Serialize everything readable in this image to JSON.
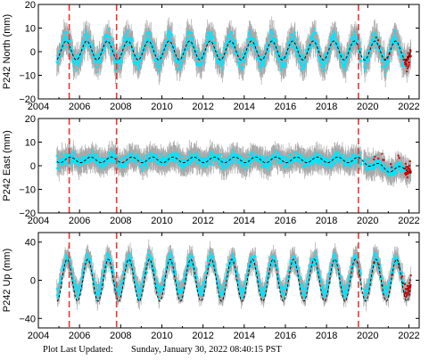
{
  "chart_data": [
    {
      "type": "scatter",
      "ylabel": "P242 North (mm)",
      "xlim": [
        2004,
        2022.5
      ],
      "ylim": [
        -20,
        20
      ],
      "xticks": [
        "2004",
        "2006",
        "2008",
        "2010",
        "2012",
        "2014",
        "2016",
        "2018",
        "2020",
        "2022"
      ],
      "yticks": [
        "20",
        "10",
        "0",
        "−10",
        "−20"
      ],
      "ytick_values": [
        20,
        10,
        0,
        -10,
        -20
      ],
      "event_lines": [
        2005.5,
        2007.8,
        2019.55
      ],
      "series": [
        {
          "x_start": 2004.9,
          "x_end": 2022.1,
          "offset": 0.5,
          "amplitude": 5.5,
          "phase": 0.1,
          "noise": 3.5,
          "error_bar": 5.0,
          "post_2020_color": "#cc0000"
        },
        {
          "model_line": true,
          "amplitude": 4.0,
          "offset": 0.5
        }
      ],
      "colors": {
        "points": "#00e5ff",
        "errors": "#a8a8a8",
        "events": "#e53935",
        "model": "#000000",
        "late": "#cc0000"
      },
      "grid": false
    },
    {
      "type": "scatter",
      "ylabel": "P242 East (mm)",
      "xlim": [
        2004,
        2022.5
      ],
      "ylim": [
        -20,
        20
      ],
      "xticks": [
        "2004",
        "2006",
        "2008",
        "2010",
        "2012",
        "2014",
        "2016",
        "2018",
        "2020",
        "2022"
      ],
      "yticks": [
        "20",
        "10",
        "0",
        "−10",
        "−20"
      ],
      "ytick_values": [
        20,
        10,
        0,
        -10,
        -20
      ],
      "event_lines": [
        2005.5,
        2007.8,
        2019.55
      ],
      "series": [
        {
          "x_start": 2004.9,
          "x_end": 2022.1,
          "offset": 2.5,
          "amplitude": 1.2,
          "phase": 0.3,
          "noise": 2.5,
          "error_bar": 4.5,
          "trend_late": -4,
          "post_2020_color": "#cc0000"
        },
        {
          "model_line": true,
          "amplitude": 1.2,
          "offset": 2.5
        }
      ],
      "colors": {
        "points": "#00e5ff",
        "errors": "#a8a8a8",
        "events": "#e53935",
        "model": "#000000",
        "late": "#cc0000"
      },
      "grid": false
    },
    {
      "type": "scatter",
      "ylabel": "P242 Up (mm)",
      "xlim": [
        2004,
        2022.5
      ],
      "ylim": [
        -50,
        50
      ],
      "xticks": [
        "2004",
        "2006",
        "2008",
        "2010",
        "2012",
        "2014",
        "2016",
        "2018",
        "2020",
        "2022"
      ],
      "yticks": [
        "40",
        "0",
        "−40"
      ],
      "ytick_values": [
        40,
        0,
        -40
      ],
      "event_lines": [
        2005.5,
        2007.8,
        2019.55
      ],
      "series": [
        {
          "x_start": 2004.9,
          "x_end": 2022.1,
          "offset": 5,
          "amplitude": 18,
          "phase": 0.15,
          "noise": 7,
          "error_bar": 10,
          "post_2020_color": "#cc0000"
        },
        {
          "model_line": true,
          "amplitude": 22,
          "offset": 0
        }
      ],
      "colors": {
        "points": "#00e5ff",
        "errors": "#a8a8a8",
        "events": "#e53935",
        "model": "#000000",
        "late": "#cc0000"
      },
      "grid": false
    }
  ],
  "footer": {
    "label": "Plot Last Updated:",
    "value": "Sunday, January 30, 2022 08:40:15 PST"
  }
}
